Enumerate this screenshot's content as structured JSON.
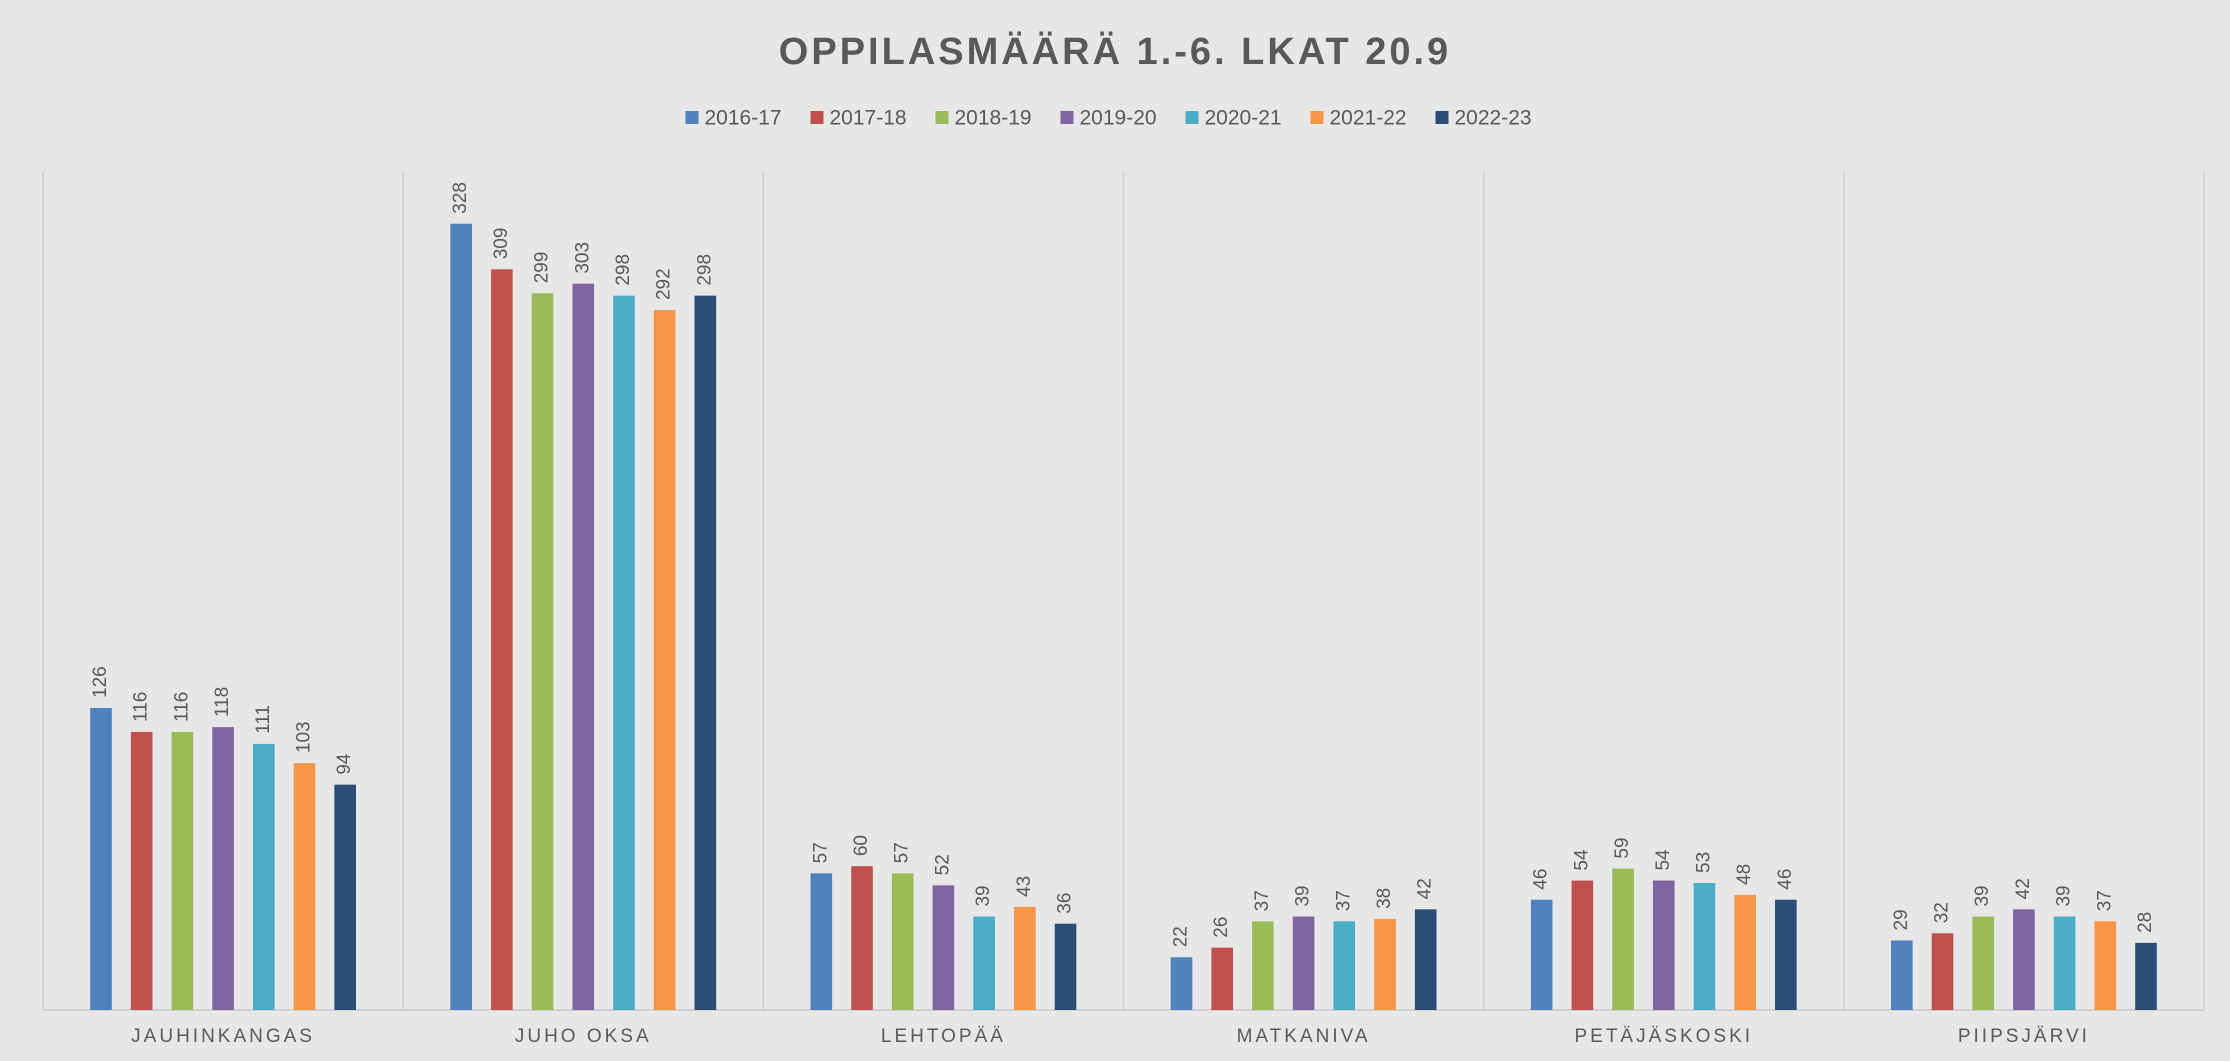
{
  "chart_data": {
    "type": "bar",
    "title": "OPPILASMÄÄRÄ 1.-6. LKAT 20.9",
    "categories": [
      "JAUHINKANGAS",
      "JUHO OKSA",
      "LEHTOPÄÄ",
      "MATKANIVA",
      "PETÄJÄSKOSKI",
      "PIIPSJÄRVI"
    ],
    "series": [
      {
        "name": "2016-17",
        "color": "#4f81bd",
        "values": [
          126,
          328,
          57,
          22,
          46,
          29
        ]
      },
      {
        "name": "2017-18",
        "color": "#c0504d",
        "values": [
          116,
          309,
          60,
          26,
          54,
          32
        ]
      },
      {
        "name": "2018-19",
        "color": "#9bbb59",
        "values": [
          116,
          299,
          57,
          37,
          59,
          39
        ]
      },
      {
        "name": "2019-20",
        "color": "#8064a2",
        "values": [
          118,
          303,
          52,
          39,
          54,
          42
        ]
      },
      {
        "name": "2020-21",
        "color": "#4bacc6",
        "values": [
          111,
          298,
          39,
          37,
          53,
          39
        ]
      },
      {
        "name": "2021-22",
        "color": "#f79646",
        "values": [
          103,
          292,
          43,
          38,
          48,
          37
        ]
      },
      {
        "name": "2022-23",
        "color": "#2c4d75",
        "values": [
          94,
          298,
          36,
          42,
          46,
          28
        ]
      }
    ],
    "ylim": [
      0,
      350
    ],
    "legend": "top"
  }
}
